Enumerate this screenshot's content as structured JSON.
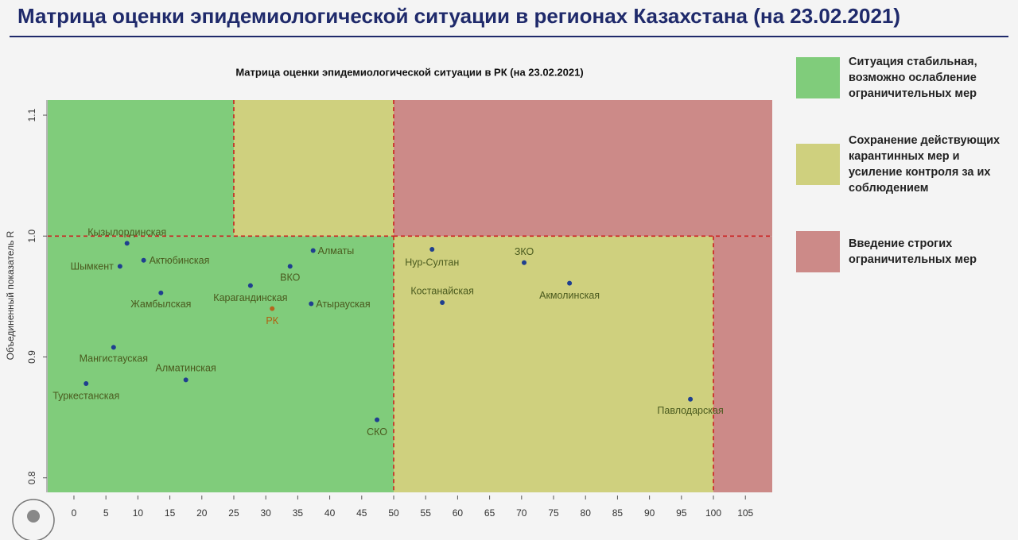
{
  "chart_data": {
    "type": "scatter",
    "header": "Матрица оценки эпидемиологической ситуации в регионах Казахстана (на 23.02.2021)",
    "title": "Матрица оценки эпидемиологической ситуации в РК (на 23.02.2021)",
    "ylabel": "Объединенный показатель R",
    "xlim": [
      -4.1,
      109.2
    ],
    "ylim": [
      0.788,
      1.1125
    ],
    "xticks": [
      0,
      5,
      10,
      15,
      20,
      25,
      30,
      35,
      40,
      45,
      50,
      55,
      60,
      65,
      70,
      75,
      80,
      85,
      90,
      95,
      100,
      105
    ],
    "yticks": [
      0.8,
      0.9,
      {
        "value": 1,
        "label": "1.0"
      },
      1.1
    ],
    "zones": [
      {
        "color": "#80cc7b",
        "label": [
          "Ситуация стабильная,",
          "возможно ослабление",
          "ограничительных мер"
        ],
        "areas": [
          {
            "x0": null,
            "x1": 25,
            "y0": 1,
            "y1": null
          },
          {
            "x0": null,
            "x1": 50,
            "y0": null,
            "y1": 1
          }
        ]
      },
      {
        "color": "#cfd07e",
        "label": [
          "Сохранение действующих",
          "карантинных мер и",
          "усиление контроля за их",
          "соблюдением"
        ],
        "areas": [
          {
            "x0": 25,
            "x1": 50,
            "y0": 1,
            "y1": null
          },
          {
            "x0": 50,
            "x1": 100,
            "y0": null,
            "y1": 1
          }
        ]
      },
      {
        "color": "#cc8a88",
        "label": [
          "Введение строгих",
          "ограничительных мер"
        ],
        "areas": [
          {
            "x0": 50,
            "x1": null,
            "y0": 1,
            "y1": null
          },
          {
            "x0": 100,
            "x1": null,
            "y0": null,
            "y1": 1
          }
        ]
      }
    ],
    "divider_color": "#cc2020",
    "point_color": "#1f3f8f",
    "label_color": "#4a5a1e",
    "points": [
      {
        "label": "Кызылординская",
        "x": 8.3,
        "y": 0.994
      },
      {
        "label": "Актюбинская",
        "x": 10.9,
        "y": 0.98
      },
      {
        "label": "Шымкент",
        "x": 7.2,
        "y": 0.975
      },
      {
        "label": "Жамбылская",
        "x": 13.6,
        "y": 0.953
      },
      {
        "label": "Мангистауская",
        "x": 6.2,
        "y": 0.908
      },
      {
        "label": "Туркестанская",
        "x": 1.9,
        "y": 0.878
      },
      {
        "label": "Алматинская",
        "x": 17.5,
        "y": 0.881
      },
      {
        "label": "Карагандинская",
        "x": 27.6,
        "y": 0.959
      },
      {
        "label": "РК",
        "x": 31.0,
        "y": 0.94,
        "color": "#b5651d",
        "label_color": "#b0600f"
      },
      {
        "label": "ВКО",
        "x": 33.8,
        "y": 0.975
      },
      {
        "label": "Алматы",
        "x": 37.4,
        "y": 0.988
      },
      {
        "label": "Атырауская",
        "x": 37.1,
        "y": 0.944
      },
      {
        "label": "СКО",
        "x": 47.4,
        "y": 0.848
      },
      {
        "label": "Нур-Султан",
        "x": 56.0,
        "y": 0.989
      },
      {
        "label": "Костанайская",
        "x": 57.6,
        "y": 0.945
      },
      {
        "label": "ЗКО",
        "x": 70.4,
        "y": 0.978
      },
      {
        "label": "Акмолинская",
        "x": 77.5,
        "y": 0.961
      },
      {
        "label": "Павлодарская",
        "x": 96.4,
        "y": 0.865
      }
    ]
  }
}
